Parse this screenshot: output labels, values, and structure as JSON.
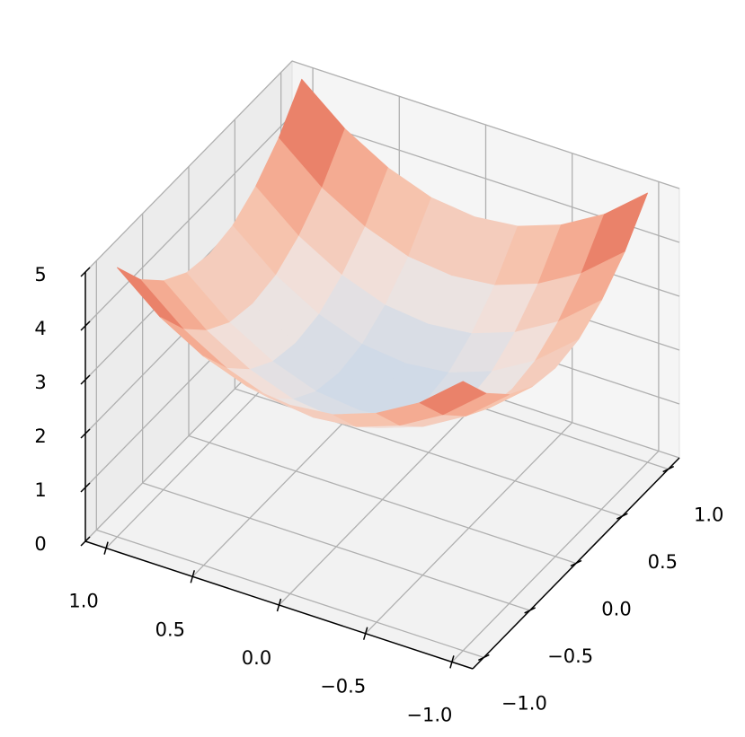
{
  "chart_data": {
    "type": "surface",
    "x": [
      -1,
      -0.75,
      -0.5,
      -0.25,
      0,
      0.25,
      0.5,
      0.75,
      1
    ],
    "y": [
      -1,
      -0.75,
      -0.5,
      -0.25,
      0,
      0.25,
      0.5,
      0.75,
      1
    ],
    "z": [
      [
        5,
        4.34,
        3.88,
        3.59,
        3.5,
        3.59,
        3.88,
        4.34,
        5
      ],
      [
        4.34,
        3.68,
        3.22,
        2.93,
        2.84,
        2.93,
        3.22,
        3.68,
        4.34
      ],
      [
        3.88,
        3.22,
        2.76,
        2.47,
        2.38,
        2.47,
        2.76,
        3.22,
        3.88
      ],
      [
        3.59,
        2.93,
        2.47,
        2.18,
        2.09,
        2.18,
        2.47,
        2.93,
        3.59
      ],
      [
        3.5,
        2.84,
        2.38,
        2.09,
        2,
        2.09,
        2.38,
        2.84,
        3.5
      ],
      [
        3.59,
        2.93,
        2.47,
        2.18,
        2.09,
        2.18,
        2.47,
        2.93,
        3.59
      ],
      [
        3.88,
        3.22,
        2.76,
        2.47,
        2.38,
        2.47,
        2.76,
        3.22,
        3.88
      ],
      [
        4.34,
        3.68,
        3.22,
        2.93,
        2.84,
        2.93,
        3.22,
        3.68,
        4.34
      ],
      [
        5,
        4.34,
        3.88,
        3.59,
        3.5,
        3.59,
        3.88,
        4.34,
        5
      ]
    ],
    "xlim": [
      -1.12,
      1.12
    ],
    "ylim": [
      -1.12,
      1.12
    ],
    "zlim": [
      0,
      5
    ],
    "xticks": [
      {
        "value": -1,
        "label": "−1.0"
      },
      {
        "value": -0.5,
        "label": "−0.5"
      },
      {
        "value": 0,
        "label": "0.0"
      },
      {
        "value": 0.5,
        "label": "0.5"
      },
      {
        "value": 1,
        "label": "1.0"
      }
    ],
    "yticks": [
      {
        "value": -1,
        "label": "−1.0"
      },
      {
        "value": -0.5,
        "label": "−0.5"
      },
      {
        "value": 0,
        "label": "0.0"
      },
      {
        "value": 0.5,
        "label": "0.5"
      },
      {
        "value": 1,
        "label": "1.0"
      }
    ],
    "zticks": [
      0,
      1,
      2,
      3,
      4,
      5
    ],
    "colormap": [
      "#ccd9e8",
      "#f0e4e0",
      "#f7bea6",
      "#ee8c71",
      "#cc3a36"
    ],
    "grid": true
  }
}
